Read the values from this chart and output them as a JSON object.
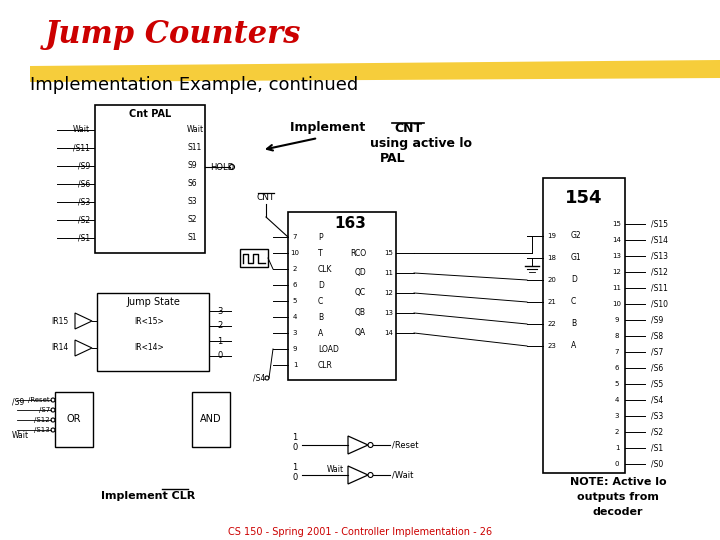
{
  "title": "Jump Counters",
  "subtitle": "Implementation Example, continued",
  "title_color": "#cc0000",
  "subtitle_color": "#000000",
  "background_color": "#ffffff",
  "highlight_color": "#f5c518",
  "footer_text": "CS 150 - Spring 2001 - Controller Implementation - 26",
  "footer_color": "#cc0000",
  "implement_cnt_text": [
    "Implement CNT",
    "using active lo",
    "PAL"
  ],
  "implement_clr_text": "Implement CLR",
  "note_text": [
    "NOTE: Active lo",
    "outputs from",
    "decoder"
  ],
  "chip163_label": "163",
  "chip154_label": "154",
  "chip_pal_label": "Cnt PAL",
  "jump_state_label": "Jump State",
  "or_label": "OR",
  "and_label": "AND",
  "cnt_label": "CNT",
  "hold_label": "HOLD",
  "cnt_pal_inputs": [
    "Wait",
    "/S11",
    "/S9",
    "/S6",
    "/S3",
    "/S2",
    "/S1"
  ],
  "cnt_pal_outputs": [
    "Wait",
    "S11",
    "S9",
    "S6",
    "S3",
    "S2",
    "S1"
  ],
  "chip163_pins_left": [
    "P",
    "T",
    "CLK",
    "D",
    "C",
    "B",
    "A",
    "LOAD",
    "CLR"
  ],
  "chip163_pins_right": [
    "RCO",
    "QD",
    "QC",
    "QB",
    "QA"
  ],
  "chip163_pin_nums_left": [
    "7",
    "10",
    "2",
    "6",
    "5",
    "4",
    "3",
    "9",
    "1"
  ],
  "chip163_pin_nums_right": [
    "15",
    "11",
    "12",
    "13",
    "14"
  ],
  "chip154_pins_right": [
    "/S15",
    "/S14",
    "/S13",
    "/S12",
    "/S11",
    "/S10",
    "/S9",
    "/S8",
    "/S7",
    "/S6",
    "/S5",
    "/S4",
    "/S3",
    "/S2",
    "/S1",
    "/S0"
  ],
  "chip154_pins_left_labels": [
    "G2",
    "G1",
    "D",
    "C",
    "B",
    "A"
  ],
  "chip154_pins_left_nums": [
    "19",
    "18",
    "20",
    "21",
    "22",
    "23"
  ],
  "jump_state_outputs": [
    "3",
    "2",
    "1",
    "0"
  ],
  "or_inputs": [
    "/Reset",
    "/S7",
    "/S12",
    "/S13"
  ],
  "arrow_color": "#000000",
  "box_color": "#000000",
  "line_color": "#000000"
}
